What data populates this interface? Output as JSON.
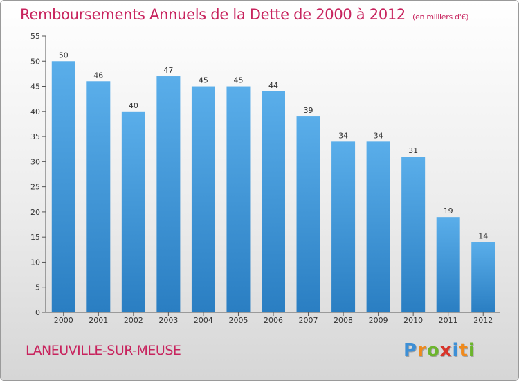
{
  "title": "Remboursements Annuels de la Dette de 2000 à 2012",
  "unit": "(en milliers d'€)",
  "place": "LANEUVILLE-SUR-MEUSE",
  "logo": {
    "letters": [
      "P",
      "r",
      "o",
      "x",
      "i",
      "t",
      "i"
    ],
    "colors": [
      "#3d8fd6",
      "#f08a1c",
      "#6cb52d",
      "#d8342a",
      "#3d8fd6",
      "#f08a1c",
      "#6cb52d"
    ]
  },
  "colors": {
    "accent": "#c8245e",
    "bar_top": "#5aaeea",
    "bar_bottom": "#2a7ec2"
  },
  "chart_data": {
    "type": "bar",
    "title": "Remboursements Annuels de la Dette de 2000 à 2012",
    "categories": [
      "2000",
      "2001",
      "2002",
      "2003",
      "2004",
      "2005",
      "2006",
      "2007",
      "2008",
      "2009",
      "2010",
      "2011",
      "2012"
    ],
    "values": [
      50,
      46,
      40,
      47,
      45,
      45,
      44,
      39,
      34,
      34,
      31,
      19,
      14
    ],
    "xlabel": "",
    "ylabel": "",
    "ylim": [
      0,
      55
    ],
    "yticks": [
      0,
      5,
      10,
      15,
      20,
      25,
      30,
      35,
      40,
      45,
      50,
      55
    ],
    "grid": false,
    "data_labels": true
  }
}
